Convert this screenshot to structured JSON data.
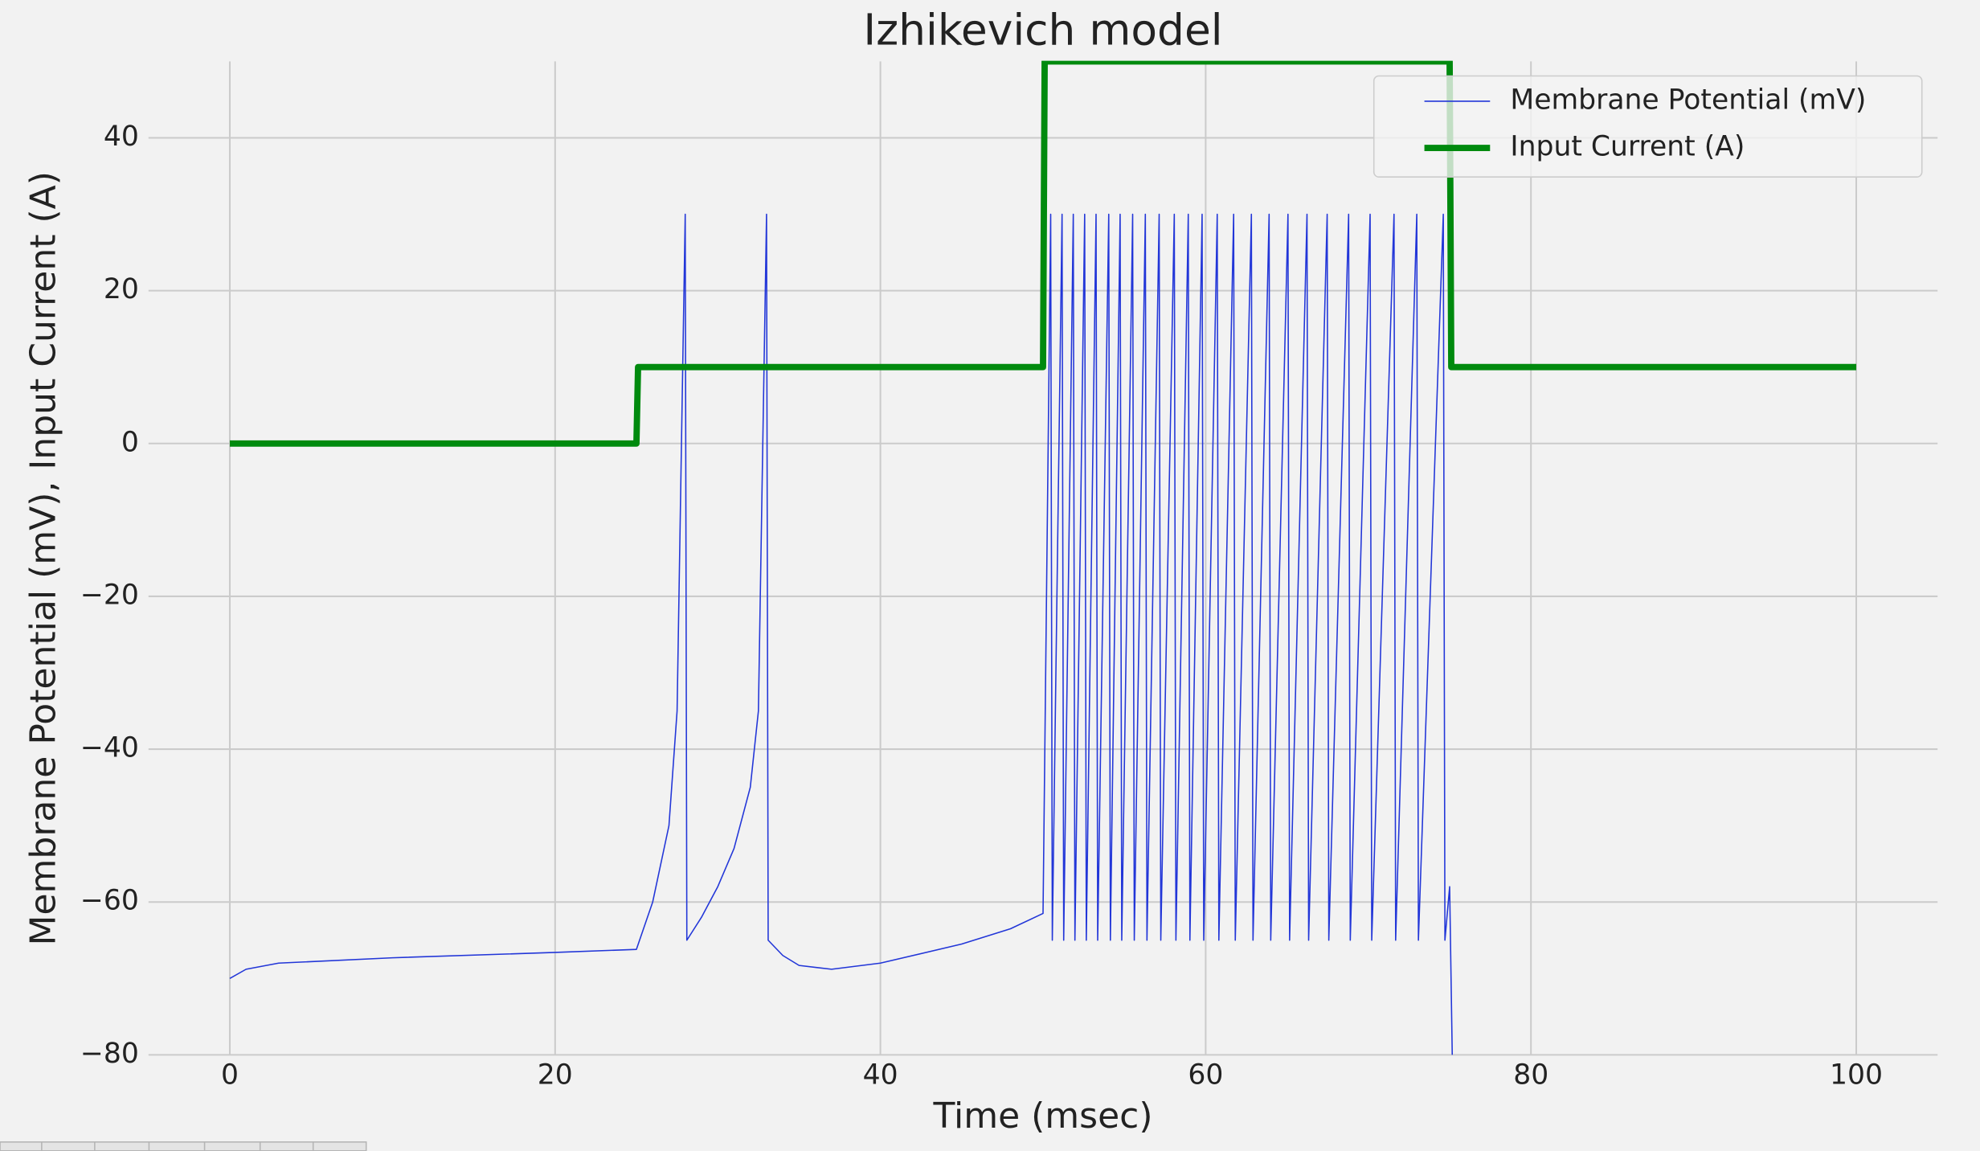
{
  "chart_data": {
    "type": "line",
    "title": "Izhikevich model",
    "x_label": "Time (msec)",
    "y_label": "Membrane Potential (mV), Input Current (A)",
    "xlim": [
      -5,
      105
    ],
    "ylim": [
      -80,
      50
    ],
    "xticks": [
      0,
      20,
      40,
      60,
      80,
      100
    ],
    "yticks": [
      {
        "value": -80,
        "label": "−80"
      },
      {
        "value": -60,
        "label": "−60"
      },
      {
        "value": -40,
        "label": "−40"
      },
      {
        "value": -20,
        "label": "−20"
      },
      0,
      20,
      40
    ],
    "grid": true,
    "legend": "upper right",
    "series": [
      {
        "name": "Membrane Potential (mV)",
        "color": "#2236d8",
        "width": 1,
        "x": [
          0,
          1,
          3,
          10,
          20,
          25,
          26,
          27,
          27.5,
          28,
          28.1,
          29,
          30,
          31,
          32,
          32.5,
          33,
          33.1,
          34,
          35,
          37,
          40,
          45,
          48,
          50,
          50.47,
          50.57,
          51.17,
          51.27,
          51.86,
          51.96,
          52.56,
          52.66,
          53.26,
          53.36,
          54.04,
          54.14,
          54.74,
          54.84,
          55.51,
          55.61,
          56.29,
          56.39,
          57.14,
          57.24,
          58.07,
          58.17,
          58.93,
          59.03,
          59.78,
          59.88,
          60.71,
          60.81,
          61.72,
          61.82,
          62.81,
          62.91,
          63.9,
          64.0,
          65.06,
          65.16,
          66.23,
          66.33,
          67.47,
          67.57,
          68.79,
          68.89,
          70.11,
          70.21,
          71.58,
          71.68,
          72.98,
          73.08,
          74.61,
          74.71,
          75.0,
          75.16
        ],
        "values": [
          -70,
          -68.8,
          -68,
          -67.3,
          -66.6,
          -66.2,
          -60,
          -50,
          -35,
          30,
          -65,
          -62,
          -58,
          -53,
          -45,
          -35,
          30,
          -65,
          -67,
          -68.3,
          -68.8,
          -68,
          -65.5,
          -63.5,
          -61.5,
          30,
          -65,
          30,
          -65,
          30,
          -65,
          30,
          -65,
          30,
          -65,
          30,
          -65,
          30,
          -65,
          30,
          -65,
          30,
          -65,
          30,
          -65,
          30,
          -65,
          30,
          -65,
          30,
          -65,
          30,
          -65,
          30,
          -65,
          30,
          -65,
          30,
          -65,
          30,
          -65,
          30,
          -65,
          30,
          -65,
          30,
          -65,
          30,
          -65,
          30,
          -65,
          30,
          -65,
          30,
          -65,
          -58,
          -80
        ]
      },
      {
        "name": "Input Current (A)",
        "color": "#008a0e",
        "width": 5,
        "x": [
          0,
          25,
          25.1,
          50,
          50.1,
          75,
          75.1,
          100
        ],
        "values": [
          0,
          0,
          10,
          10,
          50,
          50,
          10,
          10
        ]
      }
    ]
  }
}
